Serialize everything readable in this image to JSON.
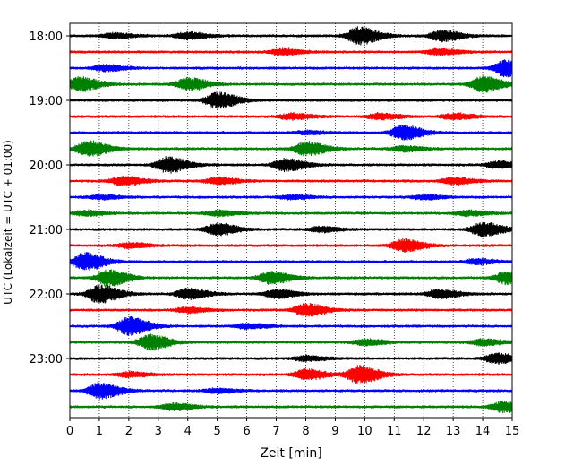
{
  "chart_data": {
    "type": "line",
    "title": "",
    "xlabel": "Zeit  [min]",
    "ylabel": "UTC (Lokalzeit = UTC + 01:00)",
    "xlim": [
      0,
      15
    ],
    "x_ticks": [
      "0",
      "1",
      "2",
      "3",
      "4",
      "5",
      "6",
      "7",
      "8",
      "9",
      "10",
      "11",
      "12",
      "13",
      "14",
      "15"
    ],
    "y_tick_labels": [
      "18:00",
      "19:00",
      "20:00",
      "21:00",
      "22:00",
      "23:00"
    ],
    "grid": "vertical-dotted",
    "trace_color_cycle": [
      "#000000",
      "#ff0000",
      "#0000ff",
      "#008000"
    ],
    "start_time": "18:00",
    "minutes_per_trace": 15,
    "trace_count": 24,
    "traces": [
      {
        "label": "18:00",
        "events": [
          [
            4.0,
            0.4
          ],
          [
            9.8,
            1.0
          ],
          [
            12.6,
            0.6
          ],
          [
            1.5,
            0.3
          ]
        ]
      },
      {
        "label": "18:15",
        "events": [
          [
            7.2,
            0.35
          ],
          [
            12.5,
            0.35
          ]
        ]
      },
      {
        "label": "18:30",
        "events": [
          [
            1.2,
            0.35
          ],
          [
            14.8,
            1.0
          ]
        ]
      },
      {
        "label": "18:45",
        "events": [
          [
            0.3,
            0.8
          ],
          [
            4.0,
            0.7
          ],
          [
            14.0,
            0.9
          ]
        ]
      },
      {
        "label": "19:00",
        "events": [
          [
            5.0,
            0.9
          ]
        ]
      },
      {
        "label": "19:15",
        "events": [
          [
            7.5,
            0.35
          ],
          [
            10.5,
            0.35
          ],
          [
            13.0,
            0.35
          ]
        ]
      },
      {
        "label": "19:30",
        "events": [
          [
            11.3,
            0.85
          ],
          [
            8.0,
            0.2
          ]
        ]
      },
      {
        "label": "19:45",
        "events": [
          [
            0.6,
            0.9
          ],
          [
            8.0,
            0.8
          ],
          [
            11.3,
            0.3
          ]
        ]
      },
      {
        "label": "20:00",
        "events": [
          [
            3.3,
            0.9
          ],
          [
            7.3,
            0.7
          ],
          [
            14.5,
            0.4
          ]
        ]
      },
      {
        "label": "20:15",
        "events": [
          [
            1.8,
            0.5
          ],
          [
            5.0,
            0.4
          ],
          [
            13.0,
            0.4
          ]
        ]
      },
      {
        "label": "20:30",
        "events": [
          [
            1.0,
            0.25
          ],
          [
            7.5,
            0.25
          ],
          [
            12.0,
            0.25
          ]
        ]
      },
      {
        "label": "20:45",
        "events": [
          [
            0.5,
            0.3
          ],
          [
            5.0,
            0.3
          ],
          [
            13.5,
            0.3
          ]
        ]
      },
      {
        "label": "21:00",
        "events": [
          [
            5.0,
            0.7
          ],
          [
            14.0,
            0.8
          ],
          [
            8.5,
            0.3
          ]
        ]
      },
      {
        "label": "21:15",
        "events": [
          [
            11.3,
            0.7
          ],
          [
            2.0,
            0.3
          ]
        ]
      },
      {
        "label": "21:30",
        "events": [
          [
            0.5,
            1.0
          ],
          [
            13.8,
            0.3
          ]
        ]
      },
      {
        "label": "21:45",
        "events": [
          [
            1.3,
            0.9
          ],
          [
            6.8,
            0.7
          ],
          [
            14.8,
            0.7
          ]
        ]
      },
      {
        "label": "22:00",
        "events": [
          [
            1.0,
            1.0
          ],
          [
            4.0,
            0.6
          ],
          [
            7.0,
            0.5
          ],
          [
            12.5,
            0.5
          ]
        ]
      },
      {
        "label": "22:15",
        "events": [
          [
            8.0,
            0.7
          ],
          [
            4.0,
            0.3
          ]
        ]
      },
      {
        "label": "22:30",
        "events": [
          [
            2.0,
            1.0
          ],
          [
            6.0,
            0.3
          ]
        ]
      },
      {
        "label": "22:45",
        "events": [
          [
            2.7,
            0.85
          ],
          [
            10.0,
            0.35
          ],
          [
            14.0,
            0.35
          ]
        ]
      },
      {
        "label": "23:00",
        "events": [
          [
            14.5,
            0.6
          ],
          [
            8.0,
            0.3
          ]
        ]
      },
      {
        "label": "23:15",
        "events": [
          [
            9.8,
            1.0
          ],
          [
            8.0,
            0.6
          ],
          [
            2.0,
            0.3
          ]
        ]
      },
      {
        "label": "23:30",
        "events": [
          [
            1.0,
            0.9
          ],
          [
            5.0,
            0.25
          ]
        ]
      },
      {
        "label": "23:45",
        "events": [
          [
            3.5,
            0.4
          ],
          [
            14.7,
            0.6
          ]
        ]
      }
    ]
  }
}
